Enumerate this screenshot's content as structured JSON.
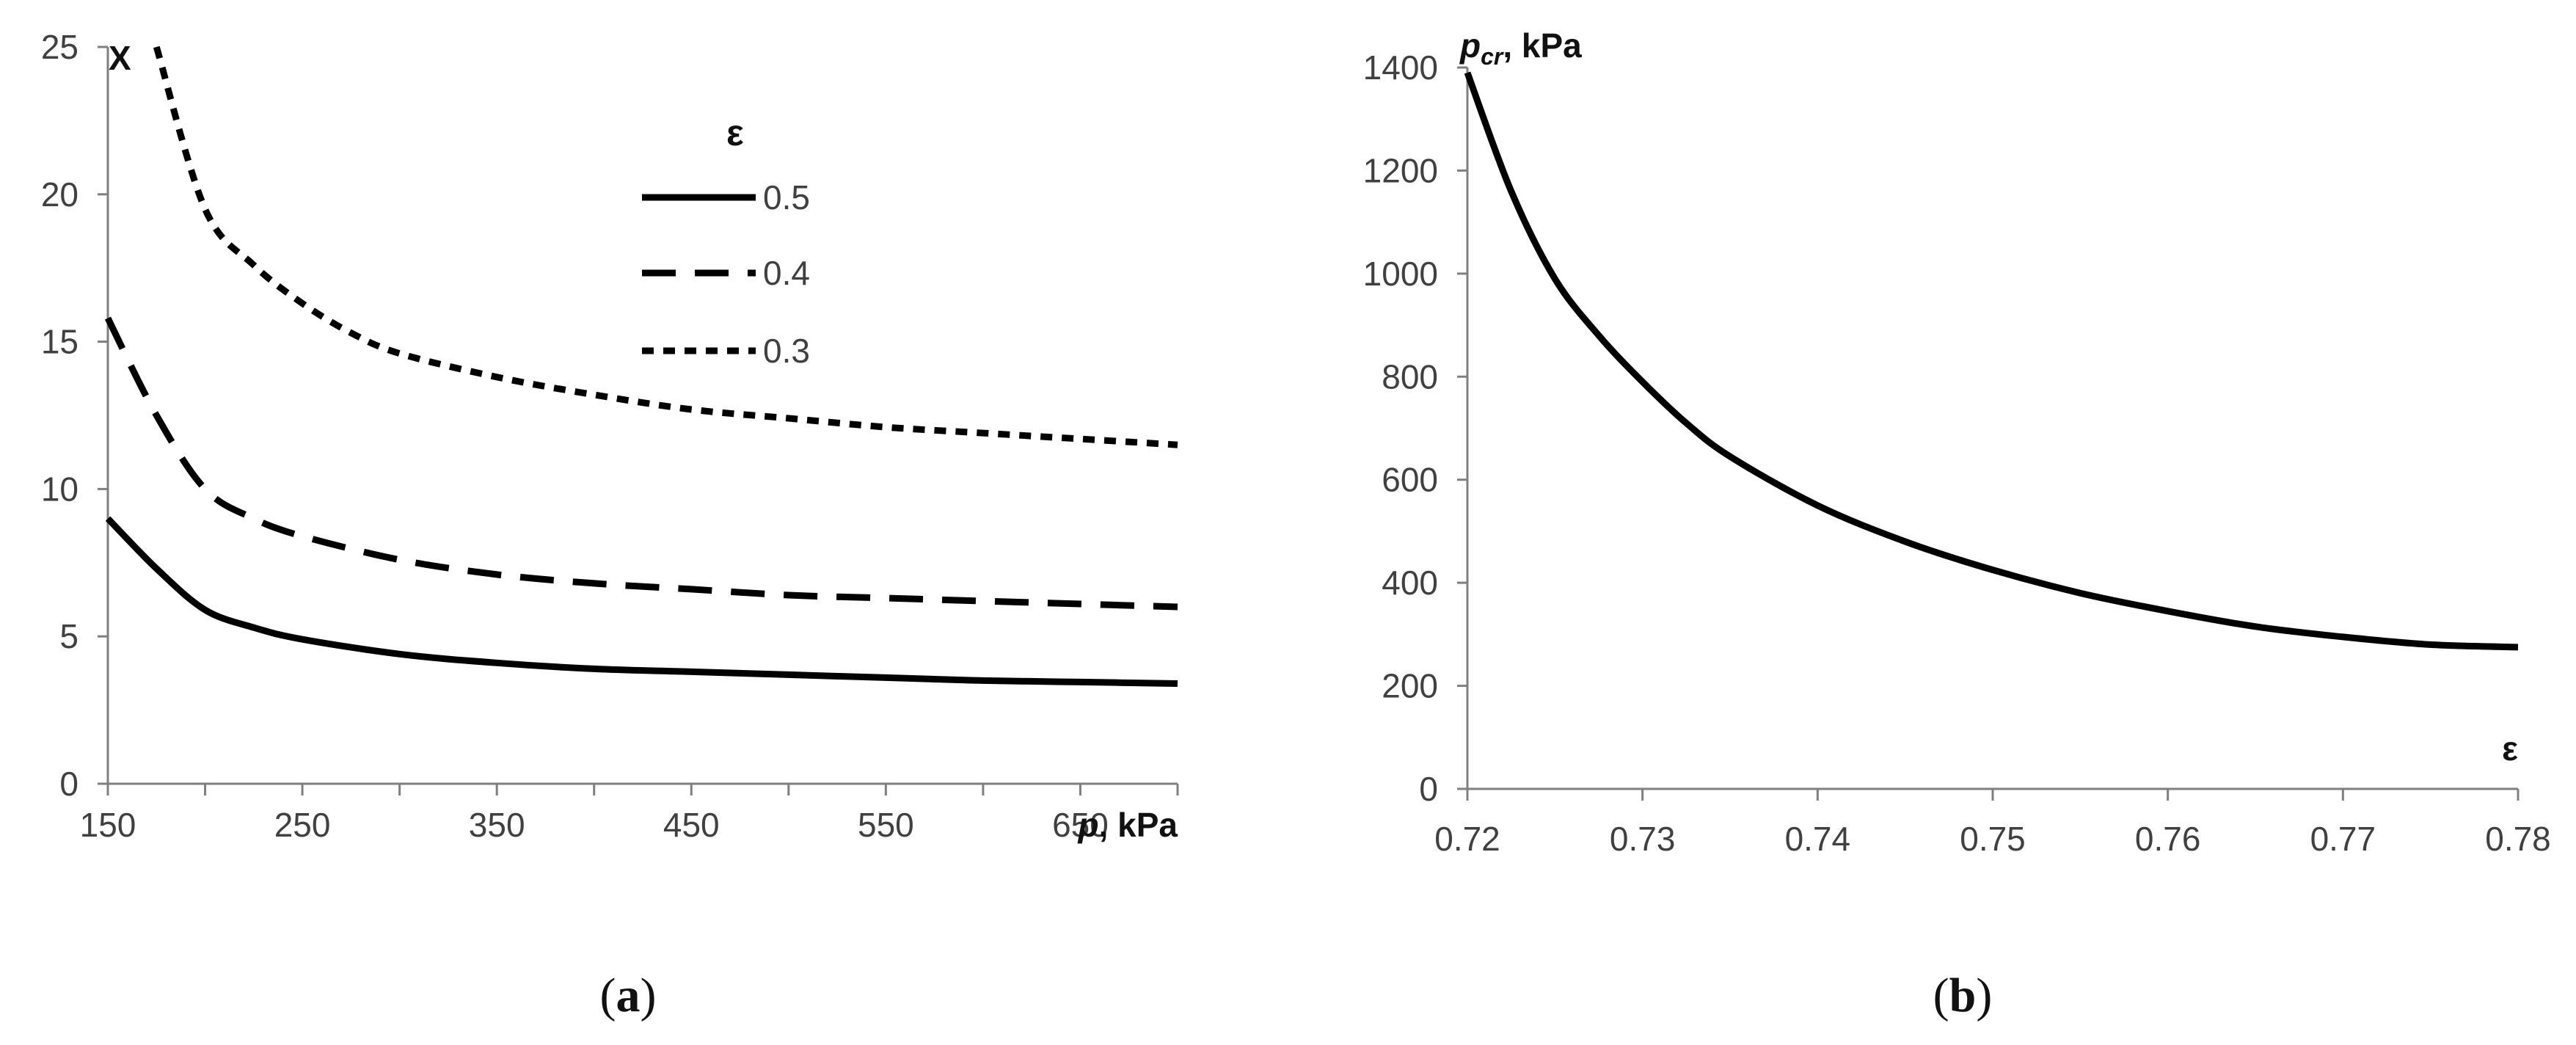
{
  "chart_data": [
    {
      "type": "line",
      "panel_label_open": "(",
      "panel_label": "a",
      "panel_label_close": ")",
      "xlabel_var": "p",
      "xlabel_unit": ", kPa",
      "ylabel": "X",
      "xlim": [
        150,
        700
      ],
      "ylim": [
        0,
        25
      ],
      "xticks": [
        150,
        250,
        350,
        450,
        550,
        650
      ],
      "xticks_minor": [
        200,
        300,
        400,
        500,
        600,
        700
      ],
      "yticks": [
        0,
        5,
        10,
        15,
        20,
        25
      ],
      "grid": false,
      "legend_title": "ε",
      "legend_position": "top-right",
      "series": [
        {
          "name": "0.5",
          "style": "solid",
          "x": [
            150,
            175,
            200,
            225,
            250,
            300,
            350,
            400,
            450,
            500,
            550,
            600,
            650,
            700
          ],
          "y": [
            9.0,
            7.3,
            5.9,
            5.3,
            4.9,
            4.4,
            4.1,
            3.9,
            3.8,
            3.7,
            3.6,
            3.5,
            3.45,
            3.4
          ]
        },
        {
          "name": "0.4",
          "style": "dashed",
          "x": [
            150,
            175,
            200,
            225,
            250,
            300,
            350,
            400,
            450,
            500,
            550,
            600,
            650,
            700
          ],
          "y": [
            15.8,
            12.5,
            10.0,
            9.0,
            8.4,
            7.6,
            7.1,
            6.8,
            6.6,
            6.4,
            6.3,
            6.2,
            6.1,
            6.0
          ]
        },
        {
          "name": "0.3",
          "style": "dotted",
          "x": [
            175,
            200,
            225,
            250,
            275,
            300,
            350,
            400,
            450,
            500,
            550,
            600,
            650,
            700
          ],
          "y": [
            25.0,
            19.5,
            17.6,
            16.3,
            15.3,
            14.6,
            13.8,
            13.2,
            12.7,
            12.4,
            12.1,
            11.9,
            11.7,
            11.5
          ]
        }
      ]
    },
    {
      "type": "line",
      "panel_label_open": "(",
      "panel_label": "b",
      "panel_label_close": ")",
      "xlabel": "ε",
      "ylabel_var": "p",
      "ylabel_sub": "cr",
      "ylabel_unit": ", kPa",
      "xlim": [
        0.72,
        0.78
      ],
      "ylim": [
        0,
        1400
      ],
      "xticks": [
        0.72,
        0.73,
        0.74,
        0.75,
        0.76,
        0.77,
        0.78
      ],
      "yticks": [
        0,
        200,
        400,
        600,
        800,
        1000,
        1200,
        1400
      ],
      "grid": false,
      "series": [
        {
          "style": "solid",
          "x": [
            0.72,
            0.7225,
            0.725,
            0.7275,
            0.73,
            0.7325,
            0.735,
            0.74,
            0.745,
            0.75,
            0.755,
            0.76,
            0.765,
            0.77,
            0.775,
            0.78
          ],
          "y": [
            1390,
            1160,
            990,
            880,
            790,
            710,
            645,
            550,
            480,
            425,
            380,
            345,
            315,
            295,
            280,
            275
          ]
        }
      ]
    }
  ]
}
